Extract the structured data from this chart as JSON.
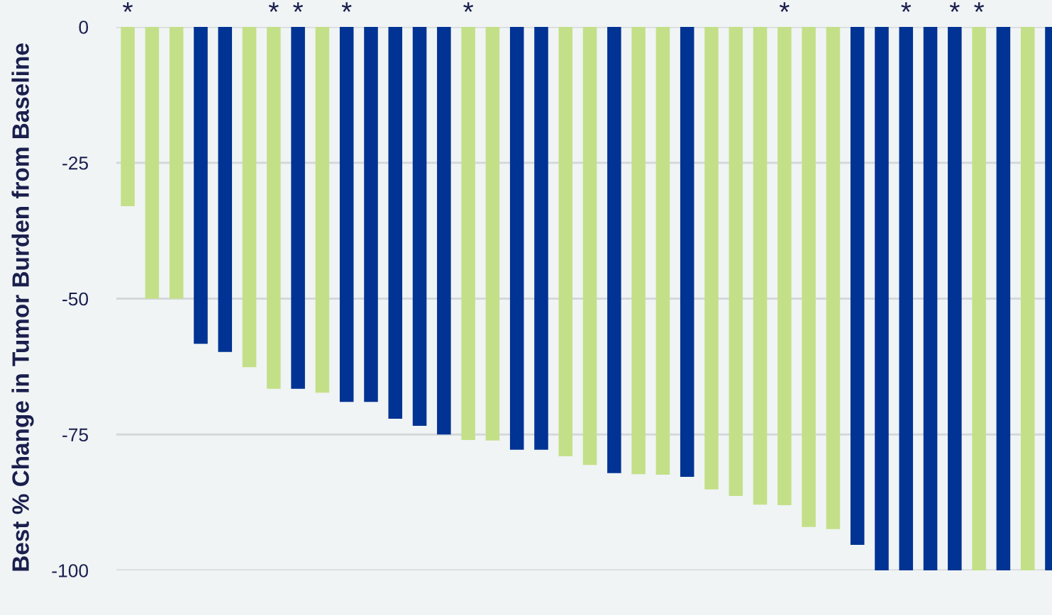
{
  "chart_data": {
    "type": "bar",
    "ylabel": "Best % Change in Tumor Burden from Baseline",
    "categories": [
      null,
      null,
      null,
      null,
      null,
      null,
      null,
      null,
      null,
      null,
      null,
      null,
      null,
      null,
      null,
      null,
      null,
      null,
      null,
      null,
      null,
      null,
      null,
      null,
      null,
      null,
      null,
      null,
      null,
      null,
      null,
      null,
      null,
      null,
      null,
      null,
      null,
      null,
      null
    ],
    "values": [
      -33,
      -50,
      -50,
      -58.3,
      -59.8,
      -62.6,
      -66.6,
      -66.6,
      -67.3,
      -69,
      -69,
      -72.1,
      -73.4,
      -75,
      -76,
      -76.1,
      -77.8,
      -77.8,
      -79,
      -80.6,
      -82.1,
      -82.3,
      -82.4,
      -82.8,
      -85.1,
      -86.3,
      -87.9,
      -88,
      -92,
      -92.4,
      -95.3,
      -100,
      -100,
      -100,
      -100,
      -100,
      -100,
      -100,
      -100
    ],
    "colors": [
      "#c3e088",
      "#c3e088",
      "#c3e088",
      "#003393",
      "#003393",
      "#c3e088",
      "#c3e088",
      "#003393",
      "#c3e088",
      "#003393",
      "#003393",
      "#003393",
      "#003393",
      "#003393",
      "#c3e088",
      "#c3e088",
      "#003393",
      "#003393",
      "#c3e088",
      "#c3e088",
      "#003393",
      "#c3e088",
      "#c3e088",
      "#003393",
      "#c3e088",
      "#c3e088",
      "#c3e088",
      "#c3e088",
      "#c3e088",
      "#c3e088",
      "#003393",
      "#003393",
      "#003393",
      "#003393",
      "#003393",
      "#c3e088",
      "#003393",
      "#c3e088",
      "#003393"
    ],
    "value_labels": [
      "*",
      null,
      null,
      null,
      null,
      null,
      "*",
      "*",
      null,
      "*",
      null,
      null,
      null,
      null,
      "*",
      null,
      null,
      null,
      null,
      null,
      null,
      null,
      null,
      null,
      null,
      null,
      null,
      "*",
      null,
      null,
      null,
      null,
      "*",
      null,
      "*",
      "*",
      null,
      null,
      null
    ],
    "ylim": [
      -100,
      0
    ],
    "yticks": [
      -100,
      -75,
      -50,
      -25,
      0
    ],
    "grid": "y"
  }
}
